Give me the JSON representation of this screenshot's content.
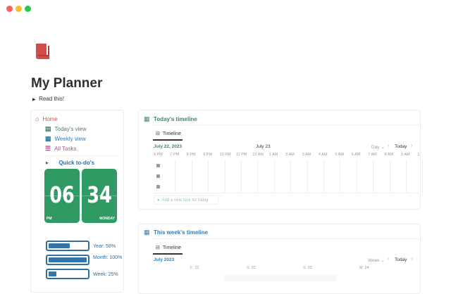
{
  "window": {
    "controls": [
      {
        "name": "close",
        "color": "#fe5f57"
      },
      {
        "name": "minimize",
        "color": "#febc2e"
      },
      {
        "name": "zoom",
        "color": "#28c840"
      }
    ]
  },
  "page": {
    "title": "My Planner",
    "toggle_label": "Read this!",
    "icon": "red-book-icon"
  },
  "sidebar": {
    "items": [
      {
        "label": "Home",
        "color": "#d44c47",
        "icon": "home-icon"
      },
      {
        "label": "Today's view",
        "color": "#448361",
        "icon": "calendar-icon"
      },
      {
        "label": "Weekly view",
        "color": "#337ea9",
        "icon": "calendar-week-icon"
      },
      {
        "label": "All Tasks",
        "color": "#c14c8a",
        "icon": "checklist-icon"
      }
    ],
    "quick_todos": "Quick to-do's",
    "clock": {
      "hour": "06",
      "minute": "34",
      "ampm": "PM",
      "day": "MONDAY"
    },
    "progress": [
      {
        "label": "Year: 58%",
        "value": 58
      },
      {
        "label": "Month: 100%",
        "value": 100
      },
      {
        "label": "Week: 25%",
        "value": 25
      }
    ]
  },
  "today": {
    "title": "Today's timeline",
    "tab": "Timeline",
    "date": "July 22, 2023",
    "center_date": "July 23",
    "view": "Day",
    "today_btn": "Today",
    "hours": [
      "6 PM",
      "7 PM",
      "8 PM",
      "9 PM",
      "10 PM",
      "11 PM",
      "12 AM",
      "1 AM",
      "2 AM",
      "3 AM",
      "4 AM",
      "5 AM",
      "6 AM",
      "7 AM",
      "8 AM",
      "9 AM",
      "1"
    ],
    "add_task": "Add a new task for today"
  },
  "week": {
    "title": "This week's timeline",
    "tab": "Timeline",
    "date": "July 2023",
    "view": "Week",
    "today_btn": "Today",
    "days": [
      {
        "d": "F",
        "n": "21"
      },
      {
        "d": "S",
        "n": "22"
      },
      {
        "d": "S",
        "n": "23"
      },
      {
        "d": "M",
        "n": "24"
      }
    ]
  }
}
